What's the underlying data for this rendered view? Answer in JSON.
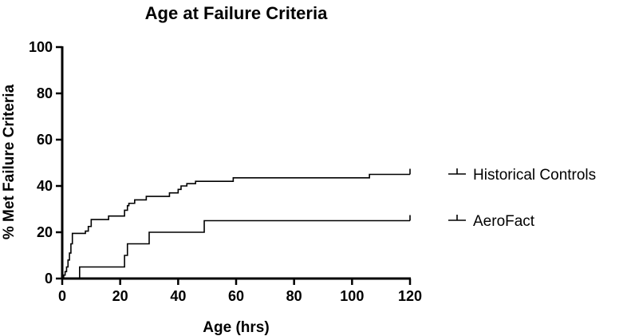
{
  "chart_data": {
    "type": "line",
    "title": "Age at Failure Criteria",
    "xlabel": "Age (hrs)",
    "ylabel": "% Met Failure Criteria",
    "xlim": [
      0,
      120
    ],
    "ylim": [
      0,
      100
    ],
    "x_ticks": [
      "0",
      "20",
      "40",
      "60",
      "80",
      "100",
      "120"
    ],
    "y_ticks": [
      "0",
      "20",
      "40",
      "60",
      "80",
      "100"
    ],
    "grid": false,
    "legend_position": "right",
    "step": true,
    "series": [
      {
        "name": "Historical Controls",
        "color": "#000000",
        "points": [
          [
            0,
            0
          ],
          [
            0.5,
            1.5
          ],
          [
            1,
            3
          ],
          [
            1.5,
            5
          ],
          [
            2,
            8
          ],
          [
            2.5,
            11
          ],
          [
            3,
            15
          ],
          [
            3.5,
            19.5
          ],
          [
            8,
            20.5
          ],
          [
            9,
            22.5
          ],
          [
            10,
            25.5
          ],
          [
            16,
            27
          ],
          [
            21.5,
            29.5
          ],
          [
            22.5,
            31.5
          ],
          [
            23,
            32.5
          ],
          [
            25,
            34
          ],
          [
            29,
            35.5
          ],
          [
            37,
            37
          ],
          [
            40,
            38.5
          ],
          [
            41,
            40
          ],
          [
            43,
            41
          ],
          [
            46,
            42
          ],
          [
            59,
            43.5
          ],
          [
            106,
            45
          ],
          [
            120,
            45
          ]
        ],
        "censor_at": 120
      },
      {
        "name": "AeroFact",
        "color": "#000000",
        "points": [
          [
            0,
            0
          ],
          [
            6,
            5
          ],
          [
            21.5,
            10
          ],
          [
            22.5,
            15
          ],
          [
            30,
            20
          ],
          [
            49,
            25
          ],
          [
            120,
            25
          ]
        ],
        "censor_at": 120
      }
    ]
  }
}
